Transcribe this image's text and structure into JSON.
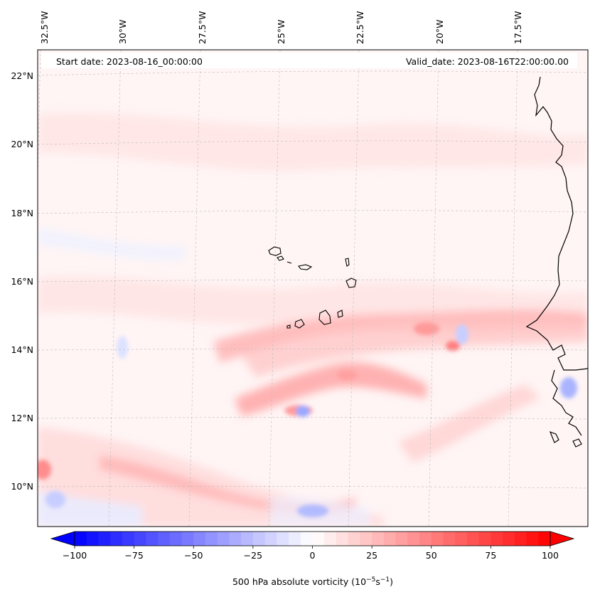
{
  "map": {
    "header": {
      "start_date": "Start date: 2023-08-16_00:00:00",
      "valid_date": "Valid_date: 2023-08-16T22:00:00.00"
    },
    "longitude_labels": [
      "32.5°W",
      "30°W",
      "27.5°W",
      "25°W",
      "22.5°W",
      "20°W",
      "17.5°W"
    ],
    "latitude_labels": [
      "22°N",
      "20°N",
      "18°N",
      "16°N",
      "14°N",
      "12°N",
      "10°N"
    ],
    "field": "500 hPa absolute vorticity",
    "features": [
      "Cape Verde islands",
      "West African coastline"
    ]
  },
  "colorbar": {
    "label_text": "500 hPa absolute vorticity (10",
    "label_exp1": "−5",
    "label_mid": "s",
    "label_exp2": "−1",
    "label_close": ")",
    "min": -100,
    "max": 100,
    "step": 5,
    "tick_labels": [
      "−100",
      "−75",
      "−50",
      "−25",
      "0",
      "25",
      "50",
      "75",
      "100"
    ],
    "tick_values": [
      -100,
      -75,
      -50,
      -25,
      0,
      25,
      50,
      75,
      100
    ],
    "color_negative": "#0000ff",
    "color_zero": "#ffffff",
    "color_positive": "#ff0000"
  },
  "colors": {
    "background_field": "#fff4f4",
    "coastline": "#000000",
    "gridline": "#bbbbbb"
  }
}
